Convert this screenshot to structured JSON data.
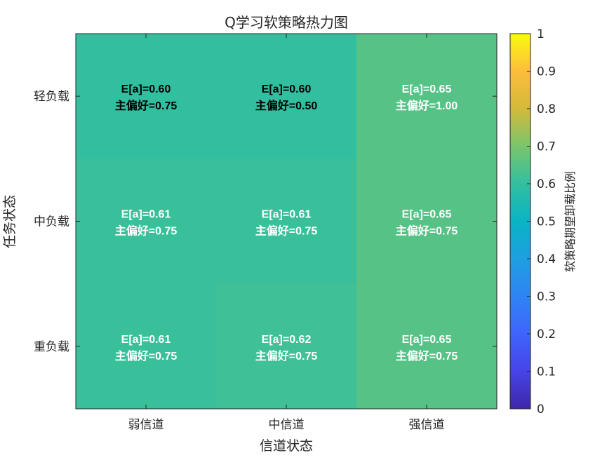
{
  "chart_data": {
    "type": "heatmap",
    "title": "Q学习软策略热力图",
    "xlabel": "信道状态",
    "ylabel": "任务状态",
    "x_categories": [
      "弱信道",
      "中信道",
      "强信道"
    ],
    "y_categories": [
      "轻负载",
      "中负载",
      "重负载"
    ],
    "values": [
      [
        0.6,
        0.6,
        0.65
      ],
      [
        0.61,
        0.61,
        0.65
      ],
      [
        0.61,
        0.62,
        0.65
      ]
    ],
    "cell_labels": [
      [
        [
          "E[a]=0.60",
          "主偏好=0.75"
        ],
        [
          "E[a]=0.60",
          "主偏好=0.50"
        ],
        [
          "E[a]=0.65",
          "主偏好=1.00"
        ]
      ],
      [
        [
          "E[a]=0.61",
          "主偏好=0.75"
        ],
        [
          "E[a]=0.61",
          "主偏好=0.75"
        ],
        [
          "E[a]=0.65",
          "主偏好=0.75"
        ]
      ],
      [
        [
          "E[a]=0.61",
          "主偏好=0.75"
        ],
        [
          "E[a]=0.62",
          "主偏好=0.75"
        ],
        [
          "E[a]=0.65",
          "主偏好=0.75"
        ]
      ]
    ],
    "cell_label_colors": [
      [
        "#000000",
        "#000000",
        "#ffffff"
      ],
      [
        "#ffffff",
        "#ffffff",
        "#ffffff"
      ],
      [
        "#ffffff",
        "#ffffff",
        "#ffffff"
      ]
    ],
    "colormap": "parula",
    "clim": [
      0,
      1
    ],
    "colorbar": {
      "label": "软策略期望卸载比例",
      "ticks": [
        "0",
        "0.1",
        "0.2",
        "0.3",
        "0.4",
        "0.5",
        "0.6",
        "0.7",
        "0.8",
        "0.9",
        "1"
      ],
      "placement": "right"
    },
    "grid": false
  }
}
